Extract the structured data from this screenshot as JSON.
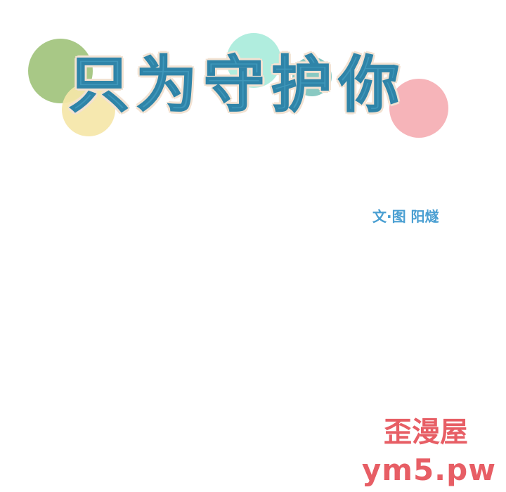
{
  "title": "只为守护你",
  "credit": "文·图 阳燧",
  "watermark": {
    "name": "歪漫屋",
    "url": "ym5.pw"
  },
  "colors": {
    "title_fill": "#3f97ba",
    "title_outline": "#f2e2d2",
    "credit": "#4a9fd2",
    "watermark": "#e23b44",
    "circle_green": "#a3c57f",
    "circle_yellow": "#f5e6a8",
    "circle_mint": "#a9ecdb",
    "circle_teal": "#7fc4bd",
    "circle_pink": "#f4a7ad"
  }
}
